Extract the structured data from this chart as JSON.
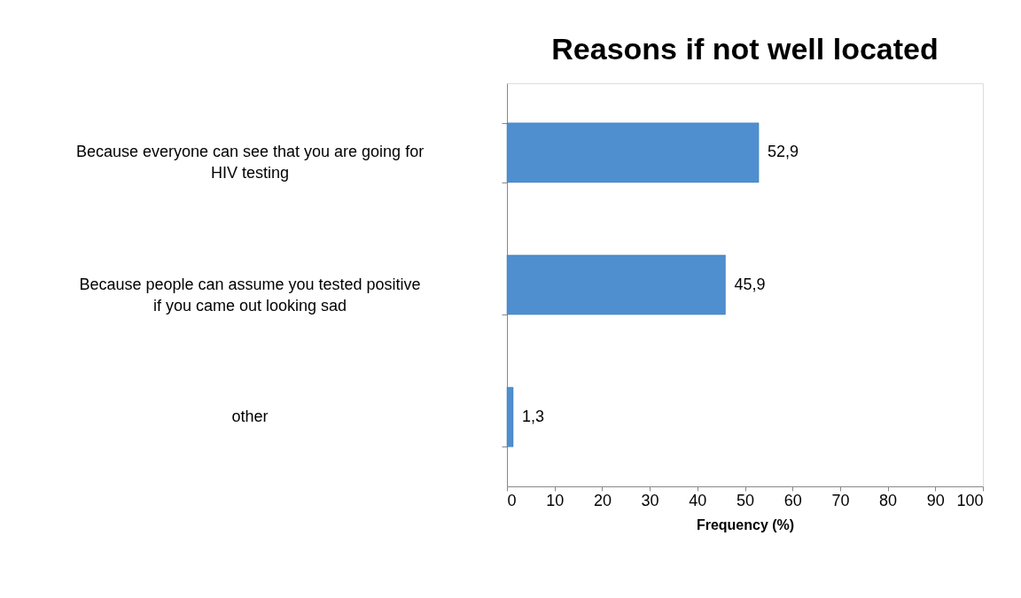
{
  "chart_data": {
    "type": "bar",
    "orientation": "horizontal",
    "title": "Reasons if not well located",
    "xlabel": "Frequency (%)",
    "categories": [
      "Because everyone can see that you are going for HIV testing",
      "Because people can assume you tested positive if you came out looking sad",
      "other"
    ],
    "values": [
      52.9,
      45.9,
      1.3
    ],
    "value_labels": [
      "52,9",
      "45,9",
      "1,3"
    ],
    "color": "#4f8fd0",
    "xlim": [
      0,
      100
    ],
    "xticks": [
      0,
      10,
      20,
      30,
      40,
      50,
      60,
      70,
      80,
      90,
      100
    ],
    "grid": false
  }
}
